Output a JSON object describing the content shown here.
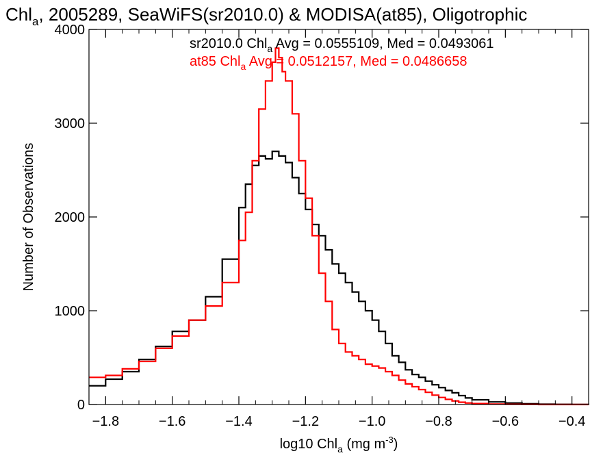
{
  "chart_data": {
    "type": "line",
    "title": {
      "pre": "Chl",
      "sub": "a",
      "post": ", 2005289, SeaWiFS(sr2010.0) & MODISA(at85), Oligotrophic"
    },
    "xlabel": {
      "pre": "log10 Chl",
      "sub": "a",
      "mid": " (mg m",
      "sup": "-3",
      "post": ")"
    },
    "ylabel": "Number of Observations",
    "xlim": [
      -1.85,
      -0.35
    ],
    "ylim": [
      0,
      4000
    ],
    "x_ticks": [
      -1.8,
      -1.6,
      -1.4,
      -1.2,
      -1.0,
      -0.8,
      -0.6,
      -0.4
    ],
    "x_tick_labels": [
      "−1.8",
      "−1.6",
      "−1.4",
      "−1.2",
      "−1.0",
      "−0.8",
      "−0.6",
      "−0.4"
    ],
    "y_ticks": [
      0,
      1000,
      2000,
      3000,
      4000
    ],
    "y_tick_labels": [
      "0",
      "1000",
      "2000",
      "3000",
      "4000"
    ],
    "grid": false,
    "stats": [
      {
        "pre": "sr2010.0 Chl",
        "sub": "a",
        "post": " Avg = 0.0555109, Med = 0.0493061",
        "color": "#000000"
      },
      {
        "pre": "at85 Chl",
        "sub": "a",
        "post": " Avg = 0.0512157, Med = 0.0486658",
        "color": "#ff0000"
      }
    ],
    "series": [
      {
        "color": "#000000",
        "x": [
          -1.85,
          -1.8,
          -1.75,
          -1.7,
          -1.65,
          -1.6,
          -1.55,
          -1.5,
          -1.45,
          -1.4,
          -1.38,
          -1.36,
          -1.34,
          -1.32,
          -1.3,
          -1.28,
          -1.26,
          -1.24,
          -1.22,
          -1.2,
          -1.18,
          -1.16,
          -1.14,
          -1.12,
          -1.1,
          -1.08,
          -1.06,
          -1.04,
          -1.02,
          -1.0,
          -0.98,
          -0.96,
          -0.94,
          -0.92,
          -0.9,
          -0.88,
          -0.86,
          -0.84,
          -0.82,
          -0.8,
          -0.78,
          -0.76,
          -0.74,
          -0.72,
          -0.7,
          -0.65,
          -0.6,
          -0.55,
          -0.5,
          -0.45,
          -0.4,
          -0.35
        ],
        "y": [
          200,
          270,
          350,
          480,
          620,
          780,
          900,
          1150,
          1550,
          2100,
          2350,
          2550,
          2650,
          2620,
          2700,
          2650,
          2580,
          2420,
          2250,
          2080,
          1920,
          1800,
          1650,
          1500,
          1400,
          1300,
          1200,
          1100,
          1000,
          900,
          780,
          650,
          520,
          450,
          370,
          320,
          290,
          250,
          210,
          180,
          150,
          125,
          95,
          70,
          50,
          28,
          15,
          8,
          4,
          2,
          1,
          0
        ]
      },
      {
        "color": "#ff0000",
        "x": [
          -1.85,
          -1.8,
          -1.75,
          -1.7,
          -1.65,
          -1.6,
          -1.55,
          -1.5,
          -1.45,
          -1.4,
          -1.38,
          -1.36,
          -1.34,
          -1.32,
          -1.3,
          -1.29,
          -1.28,
          -1.27,
          -1.26,
          -1.24,
          -1.22,
          -1.2,
          -1.18,
          -1.16,
          -1.14,
          -1.12,
          -1.1,
          -1.08,
          -1.06,
          -1.04,
          -1.02,
          -1.0,
          -0.98,
          -0.96,
          -0.94,
          -0.92,
          -0.9,
          -0.88,
          -0.86,
          -0.84,
          -0.82,
          -0.8,
          -0.78,
          -0.76,
          -0.74,
          -0.72,
          -0.7,
          -0.65,
          -0.6,
          -0.55,
          -0.5,
          -0.45,
          -0.4,
          -0.35
        ],
        "y": [
          290,
          310,
          380,
          460,
          600,
          730,
          900,
          1050,
          1300,
          1750,
          2050,
          2600,
          3150,
          3450,
          3650,
          3800,
          3700,
          3550,
          3450,
          3100,
          2600,
          2200,
          1800,
          1400,
          1100,
          800,
          650,
          560,
          520,
          480,
          430,
          410,
          390,
          350,
          310,
          260,
          220,
          190,
          160,
          130,
          100,
          75,
          55,
          38,
          25,
          16,
          10,
          5,
          2,
          1,
          0,
          0,
          0,
          0
        ]
      }
    ]
  }
}
